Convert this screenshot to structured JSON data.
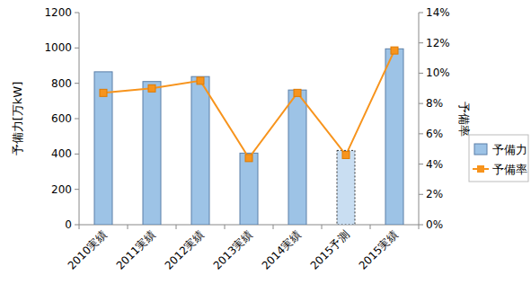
{
  "chart_data": {
    "type": "bar",
    "categories": [
      "2010実績",
      "2011実績",
      "2012実績",
      "2013実績",
      "2014実績",
      "2015予測",
      "2015実績"
    ],
    "y_label": "予備力[万kW]",
    "y2_label": "予備率",
    "series": [
      {
        "name": "予備力",
        "type": "bar",
        "color": "#9dc3e6",
        "colors": [
          "#9dc3e6",
          "#9dc3e6",
          "#9dc3e6",
          "#9dc3e6",
          "#9dc3e6",
          "#c9def2",
          "#9dc3e6"
        ],
        "values": [
          865,
          810,
          838,
          405,
          762,
          420,
          995
        ]
      },
      {
        "name": "予備率",
        "type": "line",
        "axis": "y2",
        "color": "#f7941d",
        "marker": "square",
        "values": [
          8.7,
          9.0,
          9.5,
          4.4,
          8.7,
          4.6,
          11.5
        ]
      }
    ],
    "ylim": [
      0,
      1200
    ],
    "yticks": [
      0,
      200,
      400,
      600,
      800,
      1000,
      1200
    ],
    "y2lim": [
      0,
      14
    ],
    "y2ticks": [
      {
        "value": 0,
        "label": "0%"
      },
      {
        "value": 2,
        "label": "2%"
      },
      {
        "value": 4,
        "label": "4%"
      },
      {
        "value": 6,
        "label": "6%"
      },
      {
        "value": 8,
        "label": "8%"
      },
      {
        "value": 10,
        "label": "10%"
      },
      {
        "value": 12,
        "label": "12%"
      },
      {
        "value": 14,
        "label": "14%"
      }
    ],
    "grid": false,
    "legend": "right"
  }
}
